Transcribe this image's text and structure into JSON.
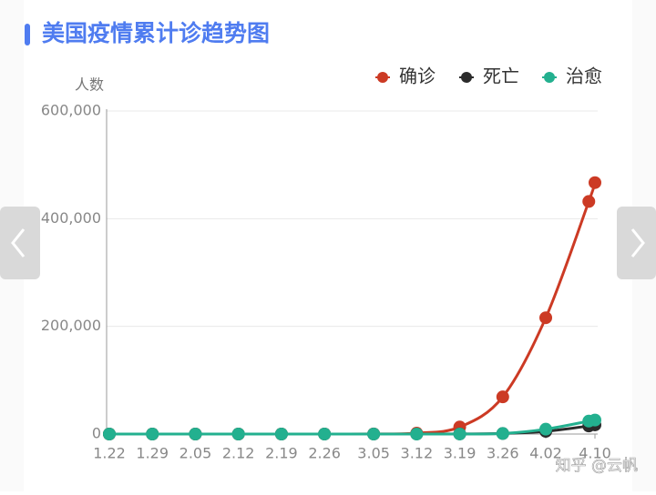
{
  "chart_data": {
    "type": "line",
    "title": "美国疫情累计诊趋势图",
    "y_label": "人数",
    "categories": [
      "1.22",
      "1.29",
      "2.05",
      "2.12",
      "2.19",
      "2.26",
      "3.05",
      "3.12",
      "3.19",
      "3.26",
      "4.02",
      null,
      "4.10"
    ],
    "series": [
      {
        "name": "确诊",
        "color": "#cc3a24",
        "values": [
          1,
          6,
          12,
          13,
          15,
          59,
          217,
          1663,
          13000,
          69000,
          216000,
          432000,
          467000
        ]
      },
      {
        "name": "死亡",
        "color": "#2b2b2b",
        "values": [
          0,
          0,
          0,
          0,
          0,
          1,
          11,
          40,
          200,
          1000,
          5000,
          15000,
          17000
        ]
      },
      {
        "name": "治愈",
        "color": "#23b08f",
        "values": [
          0,
          0,
          0,
          3,
          3,
          6,
          8,
          12,
          100,
          1000,
          9000,
          24000,
          26000
        ]
      }
    ],
    "ylim": [
      0,
      600000
    ],
    "yticks": [
      0,
      {
        "value": 200000,
        "label": "200,000"
      },
      {
        "value": 400000,
        "label": "400,000"
      },
      {
        "value": 600000,
        "label": "600,000"
      }
    ],
    "grid": true,
    "legend": "top-right"
  },
  "watermark": "知乎 @云帆"
}
